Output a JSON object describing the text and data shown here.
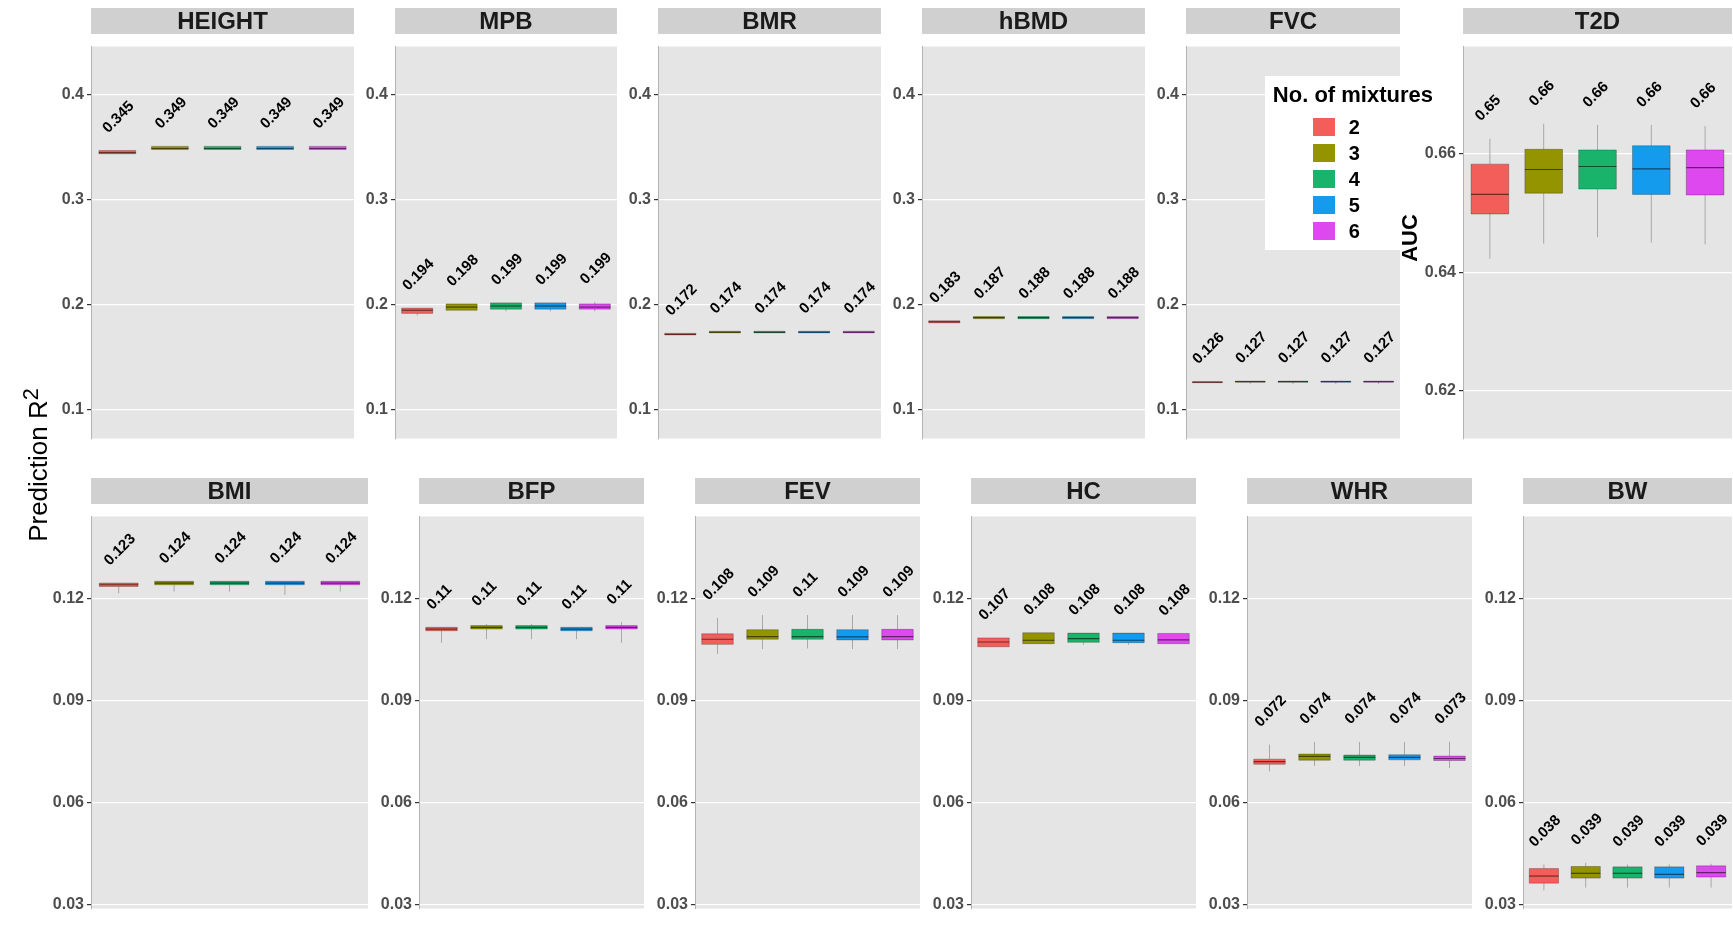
{
  "chart_data": [
    {
      "type": "box",
      "title": "HEIGHT",
      "ylabel": "Prediction R$^{2}$",
      "categories": [
        null
      ],
      "ylim": [
        0.073,
        0.446
      ],
      "yticks": [
        0.1,
        0.2,
        0.3,
        0.4
      ],
      "grid": "y",
      "series": [
        {
          "color": "#f35e5a",
          "boxes": [
            {
              "low": 0.344,
              "q1": 0.344,
              "median": 0.345,
              "q3": 0.347,
              "high": 0.347
            }
          ],
          "value_labels": [
            "0.345"
          ]
        },
        {
          "color": "#949400",
          "boxes": [
            {
              "low": 0.348,
              "q1": 0.348,
              "median": 0.349,
              "q3": 0.351,
              "high": 0.351
            }
          ],
          "value_labels": [
            "0.349"
          ]
        },
        {
          "color": "#19b36b",
          "boxes": [
            {
              "low": 0.348,
              "q1": 0.348,
              "median": 0.349,
              "q3": 0.351,
              "high": 0.351
            }
          ],
          "value_labels": [
            "0.349"
          ]
        },
        {
          "color": "#149bed",
          "boxes": [
            {
              "low": 0.348,
              "q1": 0.348,
              "median": 0.349,
              "q3": 0.351,
              "high": 0.351
            }
          ],
          "value_labels": [
            "0.349"
          ]
        },
        {
          "color": "#de48ef",
          "boxes": [
            {
              "low": 0.348,
              "q1": 0.348,
              "median": 0.349,
              "q3": 0.351,
              "high": 0.351
            }
          ],
          "value_labels": [
            "0.349"
          ]
        }
      ]
    },
    {
      "type": "box",
      "title": "MPB",
      "categories": [
        null
      ],
      "ylim": [
        0.073,
        0.446
      ],
      "yticks": [
        0.1,
        0.2,
        0.3,
        0.4
      ],
      "grid": "y",
      "series": [
        {
          "color": "#f35e5a",
          "boxes": [
            {
              "low": 0.19,
              "q1": 0.192,
              "median": 0.195,
              "q3": 0.197,
              "high": 0.197
            }
          ],
          "value_labels": [
            "0.194"
          ]
        },
        {
          "color": "#949400",
          "boxes": [
            {
              "low": 0.195,
              "q1": 0.195,
              "median": 0.198,
              "q3": 0.201,
              "high": 0.201
            }
          ],
          "value_labels": [
            "0.198"
          ]
        },
        {
          "color": "#19b36b",
          "boxes": [
            {
              "low": 0.194,
              "q1": 0.196,
              "median": 0.199,
              "q3": 0.202,
              "high": 0.202
            }
          ],
          "value_labels": [
            "0.199"
          ]
        },
        {
          "color": "#149bed",
          "boxes": [
            {
              "low": 0.194,
              "q1": 0.196,
              "median": 0.199,
              "q3": 0.202,
              "high": 0.202
            }
          ],
          "value_labels": [
            "0.199"
          ]
        },
        {
          "color": "#de48ef",
          "boxes": [
            {
              "low": 0.194,
              "q1": 0.196,
              "median": 0.198,
              "q3": 0.201,
              "high": 0.203
            }
          ],
          "value_labels": [
            "0.199"
          ]
        }
      ]
    },
    {
      "type": "box",
      "title": "BMR",
      "categories": [
        null
      ],
      "ylim": [
        0.073,
        0.446
      ],
      "yticks": [
        0.1,
        0.2,
        0.3,
        0.4
      ],
      "grid": "y",
      "series": [
        {
          "color": "#f35e5a",
          "boxes": [
            {
              "low": 0.1715,
              "q1": 0.1715,
              "median": 0.172,
              "q3": 0.173,
              "high": 0.173
            }
          ],
          "value_labels": [
            "0.172"
          ]
        },
        {
          "color": "#949400",
          "boxes": [
            {
              "low": 0.1735,
              "q1": 0.1735,
              "median": 0.174,
              "q3": 0.175,
              "high": 0.175
            }
          ],
          "value_labels": [
            "0.174"
          ]
        },
        {
          "color": "#19b36b",
          "boxes": [
            {
              "low": 0.1735,
              "q1": 0.1735,
              "median": 0.174,
              "q3": 0.175,
              "high": 0.175
            }
          ],
          "value_labels": [
            "0.174"
          ]
        },
        {
          "color": "#149bed",
          "boxes": [
            {
              "low": 0.1735,
              "q1": 0.1735,
              "median": 0.174,
              "q3": 0.175,
              "high": 0.175
            }
          ],
          "value_labels": [
            "0.174"
          ]
        },
        {
          "color": "#de48ef",
          "boxes": [
            {
              "low": 0.1735,
              "q1": 0.1735,
              "median": 0.174,
              "q3": 0.175,
              "high": 0.175
            }
          ],
          "value_labels": [
            "0.174"
          ]
        }
      ]
    },
    {
      "type": "box",
      "title": "hBMD",
      "categories": [
        null
      ],
      "ylim": [
        0.073,
        0.446
      ],
      "yticks": [
        0.1,
        0.2,
        0.3,
        0.4
      ],
      "grid": "y",
      "series": [
        {
          "color": "#f35e5a",
          "boxes": [
            {
              "low": 0.183,
              "q1": 0.183,
              "median": 0.184,
              "q3": 0.185,
              "high": 0.185
            }
          ],
          "value_labels": [
            "0.183"
          ]
        },
        {
          "color": "#949400",
          "boxes": [
            {
              "low": 0.187,
              "q1": 0.187,
              "median": 0.188,
              "q3": 0.189,
              "high": 0.189
            }
          ],
          "value_labels": [
            "0.187"
          ]
        },
        {
          "color": "#19b36b",
          "boxes": [
            {
              "low": 0.187,
              "q1": 0.187,
              "median": 0.188,
              "q3": 0.189,
              "high": 0.189
            }
          ],
          "value_labels": [
            "0.188"
          ]
        },
        {
          "color": "#149bed",
          "boxes": [
            {
              "low": 0.187,
              "q1": 0.187,
              "median": 0.188,
              "q3": 0.189,
              "high": 0.189
            }
          ],
          "value_labels": [
            "0.188"
          ]
        },
        {
          "color": "#de48ef",
          "boxes": [
            {
              "low": 0.187,
              "q1": 0.187,
              "median": 0.188,
              "q3": 0.189,
              "high": 0.189
            }
          ],
          "value_labels": [
            "0.188"
          ]
        }
      ]
    },
    {
      "type": "box",
      "title": "FVC",
      "categories": [
        null
      ],
      "ylim": [
        0.073,
        0.446
      ],
      "yticks": [
        0.1,
        0.2,
        0.3,
        0.4
      ],
      "grid": "y",
      "legend": "top right",
      "legend_title": "No. of mixtures",
      "series": [
        {
          "name": "2",
          "color": "#f35e5a",
          "boxes": [
            {
              "low": 0.125,
              "q1": 0.1262,
              "median": 0.1265,
              "q3": 0.127,
              "high": 0.127
            }
          ],
          "value_labels": [
            "0.126"
          ]
        },
        {
          "name": "3",
          "color": "#949400",
          "boxes": [
            {
              "low": 0.125,
              "q1": 0.1268,
              "median": 0.127,
              "q3": 0.1275,
              "high": 0.1275
            }
          ],
          "value_labels": [
            "0.127"
          ]
        },
        {
          "name": "4",
          "color": "#19b36b",
          "boxes": [
            {
              "low": 0.125,
              "q1": 0.1268,
              "median": 0.127,
              "q3": 0.1275,
              "high": 0.1275
            }
          ],
          "value_labels": [
            "0.127"
          ]
        },
        {
          "name": "5",
          "color": "#149bed",
          "boxes": [
            {
              "low": 0.125,
              "q1": 0.1268,
              "median": 0.127,
              "q3": 0.1275,
              "high": 0.1275
            }
          ],
          "value_labels": [
            "0.127"
          ]
        },
        {
          "name": "6",
          "color": "#de48ef",
          "boxes": [
            {
              "low": 0.125,
              "q1": 0.1268,
              "median": 0.127,
              "q3": 0.1275,
              "high": 0.1275
            }
          ],
          "value_labels": [
            "0.127"
          ]
        }
      ]
    },
    {
      "type": "box",
      "title": "T2D",
      "ylabel": "AUC",
      "categories": [
        null
      ],
      "ylim": [
        0.612,
        0.678
      ],
      "yticks": [
        0.62,
        0.64,
        0.66
      ],
      "grid": "y",
      "series": [
        {
          "color": "#f35e5a",
          "boxes": [
            {
              "low": 0.6423,
              "q1": 0.6498,
              "median": 0.6531,
              "q3": 0.6582,
              "high": 0.6625
            }
          ],
          "value_labels": [
            "0.65"
          ]
        },
        {
          "color": "#949400",
          "boxes": [
            {
              "low": 0.6448,
              "q1": 0.6533,
              "median": 0.6573,
              "q3": 0.6607,
              "high": 0.665
            }
          ],
          "value_labels": [
            "0.66"
          ]
        },
        {
          "color": "#19b36b",
          "boxes": [
            {
              "low": 0.6459,
              "q1": 0.654,
              "median": 0.6578,
              "q3": 0.6606,
              "high": 0.6648
            }
          ],
          "value_labels": [
            "0.66"
          ]
        },
        {
          "color": "#149bed",
          "boxes": [
            {
              "low": 0.645,
              "q1": 0.6531,
              "median": 0.6574,
              "q3": 0.6613,
              "high": 0.6648
            }
          ],
          "value_labels": [
            "0.66"
          ]
        },
        {
          "color": "#de48ef",
          "boxes": [
            {
              "low": 0.6447,
              "q1": 0.653,
              "median": 0.6576,
              "q3": 0.6606,
              "high": 0.6646
            }
          ],
          "value_labels": [
            "0.66"
          ]
        }
      ]
    },
    {
      "type": "box",
      "title": "BMI",
      "categories": [
        null
      ],
      "ylim": [
        0.029,
        0.144
      ],
      "yticks": [
        0.03,
        0.06,
        0.09,
        0.12
      ],
      "grid": "y",
      "series": [
        {
          "color": "#f35e5a",
          "boxes": [
            {
              "low": 0.1215,
              "q1": 0.1235,
              "median": 0.124,
              "q3": 0.1245,
              "high": 0.1245
            }
          ],
          "value_labels": [
            "0.123"
          ]
        },
        {
          "color": "#949400",
          "boxes": [
            {
              "low": 0.122,
              "q1": 0.124,
              "median": 0.1245,
              "q3": 0.125,
              "high": 0.125
            }
          ],
          "value_labels": [
            "0.124"
          ]
        },
        {
          "color": "#19b36b",
          "boxes": [
            {
              "low": 0.122,
              "q1": 0.124,
              "median": 0.1245,
              "q3": 0.125,
              "high": 0.125
            }
          ],
          "value_labels": [
            "0.124"
          ]
        },
        {
          "color": "#149bed",
          "boxes": [
            {
              "low": 0.121,
              "q1": 0.124,
              "median": 0.1245,
              "q3": 0.125,
              "high": 0.125
            }
          ],
          "value_labels": [
            "0.124"
          ]
        },
        {
          "color": "#de48ef",
          "boxes": [
            {
              "low": 0.122,
              "q1": 0.124,
              "median": 0.1245,
              "q3": 0.125,
              "high": 0.125
            }
          ],
          "value_labels": [
            "0.124"
          ]
        }
      ]
    },
    {
      "type": "box",
      "title": "BFP",
      "categories": [
        null
      ],
      "ylim": [
        0.029,
        0.144
      ],
      "yticks": [
        0.03,
        0.06,
        0.09,
        0.12
      ],
      "grid": "y",
      "series": [
        {
          "color": "#f35e5a",
          "boxes": [
            {
              "low": 0.107,
              "q1": 0.1105,
              "median": 0.111,
              "q3": 0.1115,
              "high": 0.1115
            }
          ],
          "value_labels": [
            "0.11"
          ]
        },
        {
          "color": "#949400",
          "boxes": [
            {
              "low": 0.108,
              "q1": 0.111,
              "median": 0.1115,
              "q3": 0.112,
              "high": 0.1125
            }
          ],
          "value_labels": [
            "0.11"
          ]
        },
        {
          "color": "#19b36b",
          "boxes": [
            {
              "low": 0.108,
              "q1": 0.111,
              "median": 0.1115,
              "q3": 0.112,
              "high": 0.1125
            }
          ],
          "value_labels": [
            "0.11"
          ]
        },
        {
          "color": "#149bed",
          "boxes": [
            {
              "low": 0.108,
              "q1": 0.1105,
              "median": 0.111,
              "q3": 0.1115,
              "high": 0.1115
            }
          ],
          "value_labels": [
            "0.11"
          ]
        },
        {
          "color": "#de48ef",
          "boxes": [
            {
              "low": 0.107,
              "q1": 0.111,
              "median": 0.1115,
              "q3": 0.112,
              "high": 0.113
            }
          ],
          "value_labels": [
            "0.11"
          ]
        }
      ]
    },
    {
      "type": "box",
      "title": "FEV",
      "categories": [
        null
      ],
      "ylim": [
        0.029,
        0.144
      ],
      "yticks": [
        0.03,
        0.06,
        0.09,
        0.12
      ],
      "grid": "y",
      "series": [
        {
          "color": "#f35e5a",
          "boxes": [
            {
              "low": 0.1037,
              "q1": 0.1065,
              "median": 0.108,
              "q3": 0.1096,
              "high": 0.1143
            }
          ],
          "value_labels": [
            "0.108"
          ]
        },
        {
          "color": "#949400",
          "boxes": [
            {
              "low": 0.1051,
              "q1": 0.108,
              "median": 0.1088,
              "q3": 0.1108,
              "high": 0.1151
            }
          ],
          "value_labels": [
            "0.109"
          ]
        },
        {
          "color": "#19b36b",
          "boxes": [
            {
              "low": 0.1053,
              "q1": 0.108,
              "median": 0.1088,
              "q3": 0.1109,
              "high": 0.1151
            }
          ],
          "value_labels": [
            "0.11"
          ]
        },
        {
          "color": "#149bed",
          "boxes": [
            {
              "low": 0.1051,
              "q1": 0.1078,
              "median": 0.1087,
              "q3": 0.1108,
              "high": 0.1151
            }
          ],
          "value_labels": [
            "0.109"
          ]
        },
        {
          "color": "#de48ef",
          "boxes": [
            {
              "low": 0.1051,
              "q1": 0.1078,
              "median": 0.1088,
              "q3": 0.1109,
              "high": 0.1151
            }
          ],
          "value_labels": [
            "0.109"
          ]
        }
      ]
    },
    {
      "type": "box",
      "title": "HC",
      "categories": [
        null
      ],
      "ylim": [
        0.029,
        0.144
      ],
      "yticks": [
        0.03,
        0.06,
        0.09,
        0.12
      ],
      "grid": "y",
      "series": [
        {
          "color": "#f35e5a",
          "boxes": [
            {
              "low": 0.1058,
              "q1": 0.1058,
              "median": 0.1072,
              "q3": 0.1084,
              "high": 0.1084
            }
          ],
          "value_labels": [
            "0.107"
          ]
        },
        {
          "color": "#949400",
          "boxes": [
            {
              "low": 0.1067,
              "q1": 0.1067,
              "median": 0.1077,
              "q3": 0.1099,
              "high": 0.1099
            }
          ],
          "value_labels": [
            "0.108"
          ]
        },
        {
          "color": "#19b36b",
          "boxes": [
            {
              "low": 0.1064,
              "q1": 0.1071,
              "median": 0.1082,
              "q3": 0.1098,
              "high": 0.1098
            }
          ],
          "value_labels": [
            "0.108"
          ]
        },
        {
          "color": "#149bed",
          "boxes": [
            {
              "low": 0.1064,
              "q1": 0.107,
              "median": 0.1077,
              "q3": 0.1098,
              "high": 0.1098
            }
          ],
          "value_labels": [
            "0.108"
          ]
        },
        {
          "color": "#de48ef",
          "boxes": [
            {
              "low": 0.1067,
              "q1": 0.1067,
              "median": 0.1078,
              "q3": 0.1097,
              "high": 0.1097
            }
          ],
          "value_labels": [
            "0.108"
          ]
        }
      ]
    },
    {
      "type": "box",
      "title": "WHR",
      "categories": [
        null
      ],
      "ylim": [
        0.029,
        0.144
      ],
      "yticks": [
        0.03,
        0.06,
        0.09,
        0.12
      ],
      "grid": "y",
      "series": [
        {
          "color": "#f35e5a",
          "boxes": [
            {
              "low": 0.0692,
              "q1": 0.0713,
              "median": 0.0721,
              "q3": 0.0728,
              "high": 0.0771
            }
          ],
          "value_labels": [
            "0.072"
          ]
        },
        {
          "color": "#949400",
          "boxes": [
            {
              "low": 0.0708,
              "q1": 0.0725,
              "median": 0.0736,
              "q3": 0.0743,
              "high": 0.0779
            }
          ],
          "value_labels": [
            "0.074"
          ]
        },
        {
          "color": "#19b36b",
          "boxes": [
            {
              "low": 0.0708,
              "q1": 0.0725,
              "median": 0.0733,
              "q3": 0.074,
              "high": 0.0779
            }
          ],
          "value_labels": [
            "0.074"
          ]
        },
        {
          "color": "#149bed",
          "boxes": [
            {
              "low": 0.0708,
              "q1": 0.0726,
              "median": 0.0733,
              "q3": 0.0741,
              "high": 0.0779
            }
          ],
          "value_labels": [
            "0.074"
          ]
        },
        {
          "color": "#de48ef",
          "boxes": [
            {
              "low": 0.0702,
              "q1": 0.0724,
              "median": 0.073,
              "q3": 0.0737,
              "high": 0.0779
            }
          ],
          "value_labels": [
            "0.073"
          ]
        }
      ]
    },
    {
      "type": "box",
      "title": "BW",
      "categories": [
        null
      ],
      "ylim": [
        0.029,
        0.144
      ],
      "yticks": [
        0.03,
        0.06,
        0.09,
        0.12
      ],
      "grid": "y",
      "series": [
        {
          "color": "#f35e5a",
          "boxes": [
            {
              "low": 0.0343,
              "q1": 0.0364,
              "median": 0.0385,
              "q3": 0.0407,
              "high": 0.0419
            }
          ],
          "value_labels": [
            "0.038"
          ]
        },
        {
          "color": "#949400",
          "boxes": [
            {
              "low": 0.0351,
              "q1": 0.0379,
              "median": 0.0393,
              "q3": 0.0413,
              "high": 0.0424
            }
          ],
          "value_labels": [
            "0.039"
          ]
        },
        {
          "color": "#19b36b",
          "boxes": [
            {
              "low": 0.0351,
              "q1": 0.0379,
              "median": 0.0393,
              "q3": 0.0412,
              "high": 0.0419
            }
          ],
          "value_labels": [
            "0.039"
          ]
        },
        {
          "color": "#149bed",
          "boxes": [
            {
              "low": 0.0351,
              "q1": 0.0379,
              "median": 0.039,
              "q3": 0.0412,
              "high": 0.0419
            }
          ],
          "value_labels": [
            "0.039"
          ]
        },
        {
          "color": "#de48ef",
          "boxes": [
            {
              "low": 0.0351,
              "q1": 0.0382,
              "median": 0.0395,
              "q3": 0.0415,
              "high": 0.0421
            }
          ],
          "value_labels": [
            "0.039"
          ]
        }
      ]
    }
  ]
}
